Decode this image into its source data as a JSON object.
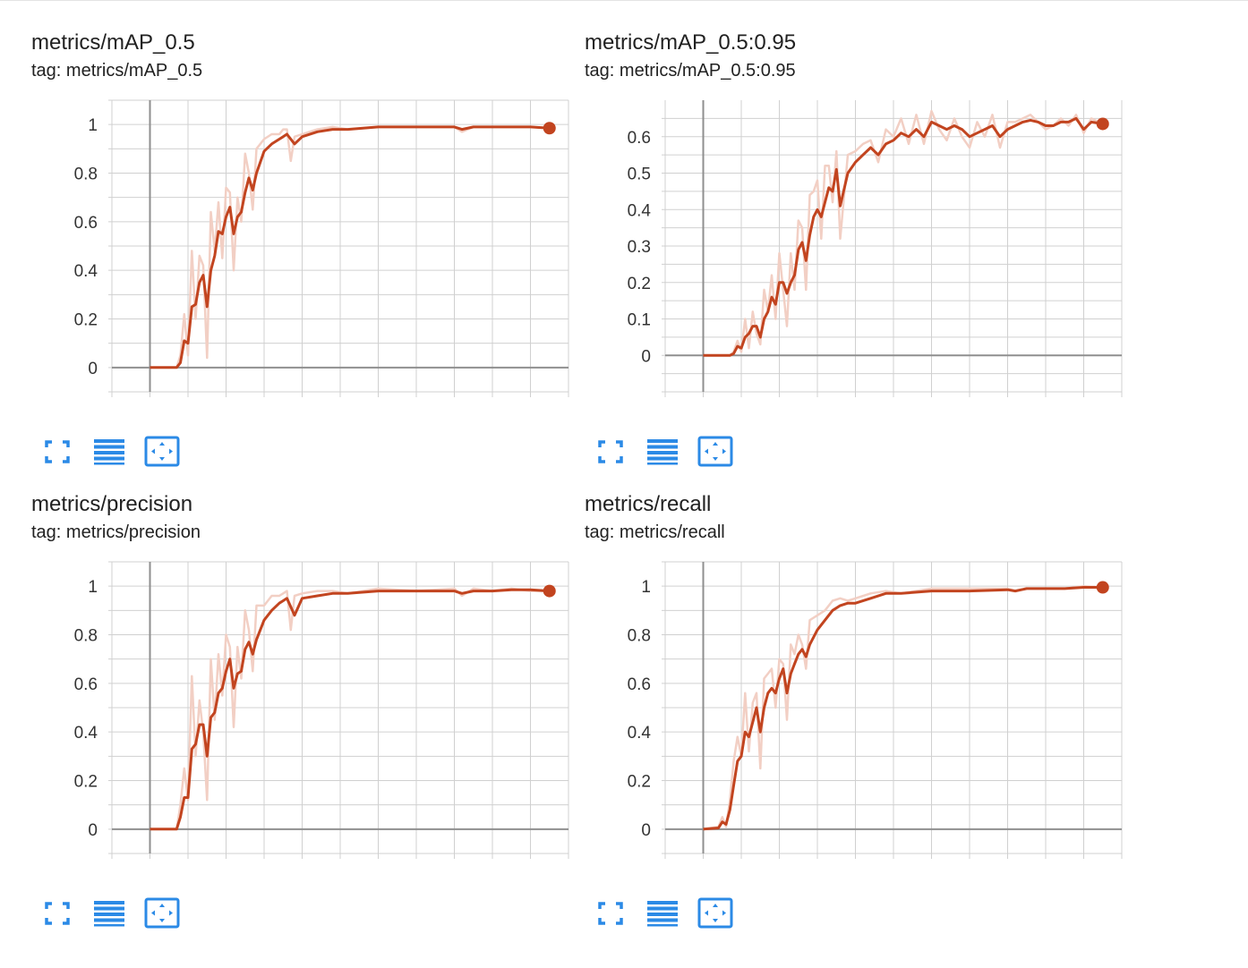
{
  "colors": {
    "smoothed": "#c2441f",
    "raw": "#f2cfc4",
    "grid": "#d0d0d0",
    "zero_axis": "#8f8f8f",
    "icon": "#2b8ae6"
  },
  "toolbar": {
    "expand_icon": "fullscreen-icon",
    "log_icon": "list-lines-icon",
    "fit_icon": "fit-domain-icon"
  },
  "chart_data": [
    {
      "type": "line",
      "title": "metrics/mAP_0.5",
      "tag": "tag: metrics/mAP_0.5",
      "ylim": [
        -0.1,
        1.1
      ],
      "yticks": [
        0,
        0.2,
        0.4,
        0.6,
        0.8,
        1
      ],
      "ytick_labels": [
        "0",
        "0.2",
        "0.4",
        "0.6",
        "0.8",
        "1"
      ],
      "xlim": [
        -10,
        110
      ],
      "grid": true,
      "series": [
        {
          "role": "smoothed",
          "x": [
            0,
            7,
            8,
            9,
            10,
            11,
            12,
            13,
            14,
            15,
            16,
            17,
            18,
            19,
            20,
            21,
            22,
            23,
            24,
            25,
            26,
            27,
            28,
            30,
            32,
            34,
            35,
            36,
            38,
            40,
            44,
            48,
            52,
            60,
            70,
            80,
            82,
            85,
            90,
            95,
            100,
            105
          ],
          "y": [
            0,
            0,
            0.02,
            0.11,
            0.1,
            0.25,
            0.26,
            0.35,
            0.38,
            0.25,
            0.4,
            0.46,
            0.56,
            0.55,
            0.62,
            0.66,
            0.55,
            0.62,
            0.64,
            0.72,
            0.78,
            0.73,
            0.8,
            0.89,
            0.92,
            0.94,
            0.95,
            0.96,
            0.92,
            0.95,
            0.97,
            0.98,
            0.98,
            0.99,
            0.99,
            0.99,
            0.98,
            0.99,
            0.99,
            0.99,
            0.99,
            0.985
          ]
        },
        {
          "role": "raw",
          "x": [
            0,
            7,
            8,
            9,
            10,
            11,
            12,
            13,
            14,
            15,
            16,
            17,
            18,
            19,
            20,
            21,
            22,
            23,
            24,
            25,
            26,
            27,
            28,
            30,
            32,
            34,
            35,
            36,
            37,
            38,
            40,
            44,
            48,
            52,
            60,
            70,
            80,
            82,
            85,
            90,
            95,
            100,
            105
          ],
          "y": [
            0,
            0,
            0.05,
            0.22,
            0.05,
            0.48,
            0.2,
            0.46,
            0.42,
            0.04,
            0.64,
            0.48,
            0.68,
            0.45,
            0.74,
            0.72,
            0.4,
            0.7,
            0.6,
            0.88,
            0.8,
            0.65,
            0.9,
            0.94,
            0.96,
            0.96,
            0.98,
            0.98,
            0.85,
            0.95,
            0.96,
            0.98,
            0.99,
            0.98,
            0.99,
            0.99,
            0.99,
            0.97,
            0.99,
            0.99,
            0.99,
            0.99,
            0.985
          ]
        }
      ]
    },
    {
      "type": "line",
      "title": "metrics/mAP_0.5:0.95",
      "tag": "tag: metrics/mAP_0.5:0.95",
      "ylim": [
        -0.1,
        0.7
      ],
      "yticks": [
        0,
        0.1,
        0.2,
        0.3,
        0.4,
        0.5,
        0.6
      ],
      "ytick_labels": [
        "0",
        "0.1",
        "0.2",
        "0.3",
        "0.4",
        "0.5",
        "0.6"
      ],
      "xlim": [
        -10,
        110
      ],
      "grid": true,
      "series": [
        {
          "role": "smoothed",
          "x": [
            0,
            7,
            8,
            9,
            10,
            11,
            12,
            13,
            14,
            15,
            16,
            17,
            18,
            19,
            20,
            21,
            22,
            23,
            24,
            25,
            26,
            27,
            28,
            29,
            30,
            31,
            32,
            33,
            34,
            35,
            36,
            38,
            40,
            42,
            44,
            46,
            48,
            50,
            52,
            54,
            56,
            58,
            60,
            62,
            64,
            66,
            68,
            70,
            72,
            74,
            76,
            78,
            80,
            82,
            84,
            86,
            88,
            90,
            92,
            94,
            96,
            98,
            100,
            102,
            105
          ],
          "y": [
            0,
            0,
            0.005,
            0.025,
            0.02,
            0.05,
            0.06,
            0.08,
            0.08,
            0.05,
            0.1,
            0.12,
            0.16,
            0.14,
            0.2,
            0.2,
            0.17,
            0.2,
            0.22,
            0.29,
            0.31,
            0.26,
            0.33,
            0.38,
            0.4,
            0.38,
            0.42,
            0.46,
            0.45,
            0.51,
            0.41,
            0.5,
            0.53,
            0.55,
            0.57,
            0.55,
            0.58,
            0.59,
            0.61,
            0.6,
            0.62,
            0.6,
            0.64,
            0.63,
            0.62,
            0.63,
            0.62,
            0.6,
            0.61,
            0.62,
            0.63,
            0.6,
            0.62,
            0.63,
            0.64,
            0.645,
            0.64,
            0.63,
            0.63,
            0.64,
            0.64,
            0.65,
            0.62,
            0.64,
            0.635
          ]
        },
        {
          "role": "raw",
          "x": [
            0,
            7,
            8,
            9,
            10,
            11,
            12,
            13,
            14,
            15,
            16,
            17,
            18,
            19,
            20,
            21,
            22,
            23,
            24,
            25,
            26,
            27,
            28,
            29,
            30,
            31,
            32,
            33,
            34,
            35,
            36,
            38,
            40,
            42,
            44,
            46,
            48,
            50,
            52,
            54,
            56,
            58,
            60,
            62,
            64,
            66,
            68,
            70,
            72,
            74,
            76,
            78,
            80,
            82,
            84,
            86,
            88,
            90,
            92,
            94,
            96,
            98,
            100,
            102,
            105
          ],
          "y": [
            0,
            0,
            0.01,
            0.04,
            0.01,
            0.1,
            0.02,
            0.12,
            0.06,
            0.03,
            0.18,
            0.12,
            0.22,
            0.1,
            0.28,
            0.18,
            0.08,
            0.28,
            0.18,
            0.37,
            0.35,
            0.18,
            0.44,
            0.45,
            0.48,
            0.32,
            0.52,
            0.52,
            0.42,
            0.56,
            0.32,
            0.55,
            0.56,
            0.58,
            0.59,
            0.53,
            0.62,
            0.6,
            0.65,
            0.58,
            0.66,
            0.58,
            0.67,
            0.62,
            0.59,
            0.65,
            0.6,
            0.57,
            0.64,
            0.6,
            0.66,
            0.57,
            0.64,
            0.64,
            0.65,
            0.66,
            0.64,
            0.62,
            0.63,
            0.65,
            0.63,
            0.66,
            0.61,
            0.65,
            0.635
          ]
        }
      ]
    },
    {
      "type": "line",
      "title": "metrics/precision",
      "tag": "tag: metrics/precision",
      "ylim": [
        -0.1,
        1.1
      ],
      "yticks": [
        0,
        0.2,
        0.4,
        0.6,
        0.8,
        1
      ],
      "ytick_labels": [
        "0",
        "0.2",
        "0.4",
        "0.6",
        "0.8",
        "1"
      ],
      "xlim": [
        -10,
        110
      ],
      "grid": true,
      "series": [
        {
          "role": "smoothed",
          "x": [
            0,
            7,
            8,
            9,
            10,
            11,
            12,
            13,
            14,
            15,
            16,
            17,
            18,
            19,
            20,
            21,
            22,
            23,
            24,
            25,
            26,
            27,
            28,
            30,
            32,
            34,
            35,
            36,
            38,
            40,
            44,
            48,
            52,
            60,
            70,
            80,
            82,
            85,
            90,
            95,
            100,
            105
          ],
          "y": [
            0,
            0,
            0.05,
            0.13,
            0.13,
            0.33,
            0.35,
            0.43,
            0.43,
            0.3,
            0.46,
            0.48,
            0.56,
            0.58,
            0.65,
            0.7,
            0.58,
            0.64,
            0.65,
            0.74,
            0.77,
            0.72,
            0.78,
            0.86,
            0.9,
            0.93,
            0.94,
            0.95,
            0.88,
            0.95,
            0.96,
            0.97,
            0.97,
            0.98,
            0.98,
            0.98,
            0.97,
            0.98,
            0.98,
            0.985,
            0.985,
            0.98
          ]
        },
        {
          "role": "raw",
          "x": [
            0,
            7,
            8,
            9,
            10,
            11,
            12,
            13,
            14,
            15,
            16,
            17,
            18,
            19,
            20,
            21,
            22,
            23,
            24,
            25,
            26,
            27,
            28,
            30,
            32,
            34,
            35,
            36,
            37,
            38,
            40,
            44,
            48,
            52,
            60,
            70,
            80,
            82,
            85,
            90,
            95,
            100,
            105
          ],
          "y": [
            0,
            0,
            0.1,
            0.25,
            0.12,
            0.63,
            0.3,
            0.53,
            0.4,
            0.12,
            0.7,
            0.45,
            0.72,
            0.55,
            0.8,
            0.75,
            0.42,
            0.75,
            0.62,
            0.9,
            0.82,
            0.65,
            0.92,
            0.92,
            0.96,
            0.96,
            0.97,
            0.98,
            0.82,
            0.96,
            0.97,
            0.98,
            0.98,
            0.97,
            0.99,
            0.98,
            0.99,
            0.96,
            0.99,
            0.98,
            0.99,
            0.98,
            0.98
          ]
        }
      ]
    },
    {
      "type": "line",
      "title": "metrics/recall",
      "tag": "tag: metrics/recall",
      "ylim": [
        -0.1,
        1.1
      ],
      "yticks": [
        0,
        0.2,
        0.4,
        0.6,
        0.8,
        1
      ],
      "ytick_labels": [
        "0",
        "0.2",
        "0.4",
        "0.6",
        "0.8",
        "1"
      ],
      "xlim": [
        -10,
        110
      ],
      "grid": true,
      "series": [
        {
          "role": "smoothed",
          "x": [
            0,
            4,
            5,
            6,
            7,
            8,
            9,
            10,
            11,
            12,
            13,
            14,
            15,
            16,
            17,
            18,
            19,
            20,
            21,
            22,
            23,
            24,
            25,
            26,
            27,
            28,
            30,
            32,
            34,
            36,
            38,
            40,
            44,
            48,
            52,
            60,
            70,
            80,
            82,
            85,
            90,
            95,
            100,
            105
          ],
          "y": [
            0,
            0.005,
            0.03,
            0.02,
            0.08,
            0.18,
            0.28,
            0.3,
            0.4,
            0.38,
            0.44,
            0.5,
            0.4,
            0.5,
            0.56,
            0.58,
            0.56,
            0.62,
            0.66,
            0.56,
            0.64,
            0.68,
            0.72,
            0.74,
            0.71,
            0.76,
            0.82,
            0.86,
            0.9,
            0.92,
            0.93,
            0.93,
            0.95,
            0.97,
            0.97,
            0.98,
            0.98,
            0.985,
            0.98,
            0.99,
            0.99,
            0.99,
            0.995,
            0.995
          ]
        },
        {
          "role": "raw",
          "x": [
            0,
            4,
            5,
            6,
            7,
            8,
            9,
            10,
            11,
            12,
            13,
            14,
            15,
            16,
            17,
            18,
            19,
            20,
            21,
            22,
            23,
            24,
            25,
            26,
            27,
            28,
            30,
            32,
            34,
            36,
            38,
            40,
            44,
            48,
            52,
            60,
            70,
            80,
            82,
            85,
            90,
            95,
            100,
            105
          ],
          "y": [
            0,
            0.01,
            0.05,
            0.01,
            0.12,
            0.28,
            0.38,
            0.3,
            0.56,
            0.32,
            0.52,
            0.56,
            0.25,
            0.62,
            0.64,
            0.66,
            0.5,
            0.7,
            0.68,
            0.45,
            0.76,
            0.72,
            0.8,
            0.76,
            0.66,
            0.86,
            0.88,
            0.9,
            0.94,
            0.95,
            0.94,
            0.95,
            0.97,
            0.98,
            0.97,
            0.99,
            0.99,
            0.99,
            0.98,
            0.99,
            0.99,
            0.99,
            1.0,
            0.995
          ]
        }
      ]
    }
  ]
}
